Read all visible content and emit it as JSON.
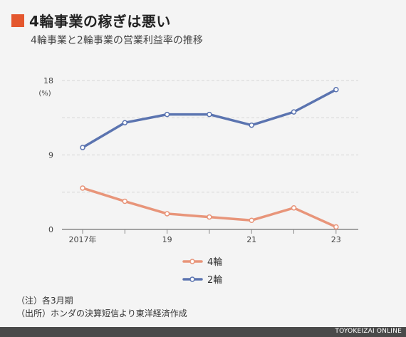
{
  "header": {
    "title": "4輪事業の稼ぎは悪い",
    "subtitle": "4輪事業と2輪事業の営業利益率の推移"
  },
  "notes": {
    "note1": "（注）各3月期",
    "note2": "（出所）ホンダの決算短信より東洋経済作成"
  },
  "footer": {
    "credit": "TOYOKEIZAI ONLINE"
  },
  "chart_data": {
    "type": "line",
    "title": "4輪事業と2輪事業の営業利益率の推移",
    "ylabel": "(%)",
    "x": [
      "2017",
      "2018",
      "2019",
      "2020",
      "2021",
      "2022",
      "2023"
    ],
    "tick_labels": [
      "2017年",
      "",
      "19",
      "",
      "21",
      "",
      "23"
    ],
    "y_ticks": [
      0,
      9,
      18
    ],
    "ylim": [
      0,
      18
    ],
    "grid": true,
    "legend_position": "bottom",
    "series": [
      {
        "name": "4輪",
        "color": "#e8957a",
        "values": [
          5.0,
          3.4,
          1.9,
          1.5,
          1.1,
          2.6,
          0.3
        ]
      },
      {
        "name": "2輪",
        "color": "#5b74b0",
        "values": [
          9.9,
          12.9,
          13.9,
          13.9,
          12.6,
          14.2,
          16.9
        ]
      }
    ]
  }
}
